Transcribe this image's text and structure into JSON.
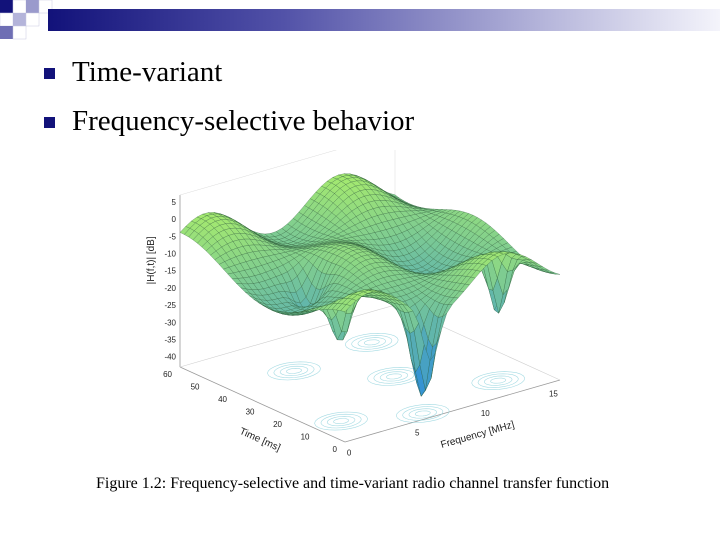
{
  "bullets": [
    {
      "text": "Time-variant"
    },
    {
      "text": "Frequency-selective behavior"
    }
  ],
  "figure": {
    "zlabel": "|H(f,t)| [dB]",
    "xlabel": "Frequency [MHz]",
    "ylabel": "Time [ms]",
    "z_ticks": [
      "5",
      "0",
      "-5",
      "-10",
      "-15",
      "-20",
      "-25",
      "-30",
      "-35",
      "-40"
    ],
    "t_ticks": [
      "60",
      "50",
      "40",
      "30",
      "20",
      "10",
      "0"
    ],
    "f_ticks": [
      "0",
      "5",
      "10",
      "15"
    ]
  },
  "caption": "Figure 1.2: Frequency-selective and time-variant radio channel transfer function",
  "colors": {
    "accent": "#12127a",
    "surface_high": "#a8ec6c",
    "surface_low": "#2f8fd8",
    "contour": "#8fd2dc"
  }
}
